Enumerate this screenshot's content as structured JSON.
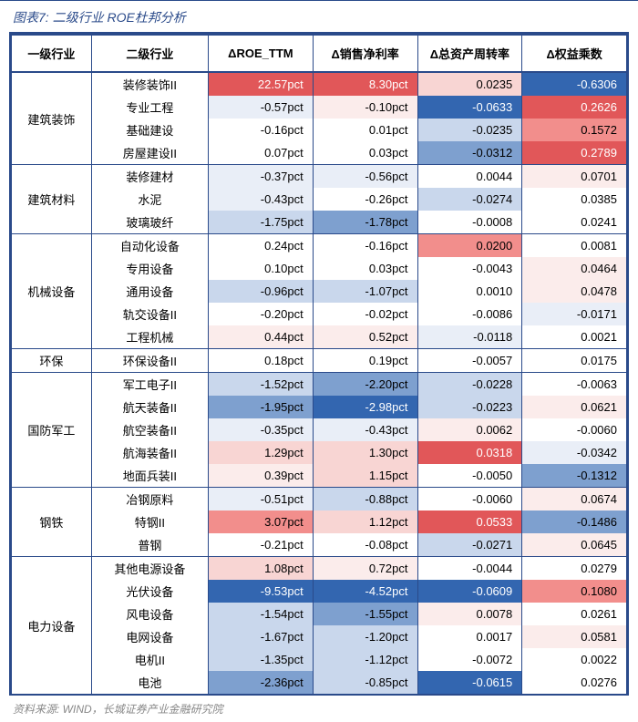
{
  "caption": "图表7: 二级行业 ROE杜邦分析",
  "source": "资料来源: WIND，长城证券产业金融研究院",
  "headers": [
    "一级行业",
    "二级行业",
    "ΔROE_TTM",
    "Δ销售净利率",
    "Δ总资产周转率",
    "Δ权益乘数"
  ],
  "colors": {
    "border": "#2a4a8a",
    "heatmap_red_strong": "#e15759",
    "heatmap_red_mid": "#f28e8c",
    "heatmap_red_light": "#f8d5d3",
    "heatmap_red_vlight": "#fbeceb",
    "heatmap_blue_strong": "#3366b0",
    "heatmap_blue_mid": "#7ea0cf",
    "heatmap_blue_light": "#c9d7ec",
    "heatmap_blue_vlight": "#e9eef7",
    "white": "#ffffff"
  },
  "groups": [
    {
      "label": "建筑装饰",
      "rows": [
        {
          "name": "装修装饰II",
          "v": [
            "22.57pct",
            "8.30pct",
            "0.0235",
            "-0.6306"
          ],
          "bg": [
            "#e15759",
            "#e15759",
            "#f8d5d3",
            "#3366b0"
          ]
        },
        {
          "name": "专业工程",
          "v": [
            "-0.57pct",
            "-0.10pct",
            "-0.0633",
            "0.2626"
          ],
          "bg": [
            "#e9eef7",
            "#fbeceb",
            "#3366b0",
            "#e15759"
          ]
        },
        {
          "name": "基础建设",
          "v": [
            "-0.16pct",
            "0.01pct",
            "-0.0235",
            "0.1572"
          ],
          "bg": [
            "#ffffff",
            "#ffffff",
            "#c9d7ec",
            "#f28e8c"
          ]
        },
        {
          "name": "房屋建设II",
          "v": [
            "0.07pct",
            "0.03pct",
            "-0.0312",
            "0.2789"
          ],
          "bg": [
            "#ffffff",
            "#ffffff",
            "#7ea0cf",
            "#e15759"
          ]
        }
      ]
    },
    {
      "label": "建筑材料",
      "rows": [
        {
          "name": "装修建材",
          "v": [
            "-0.37pct",
            "-0.56pct",
            "0.0044",
            "0.0701"
          ],
          "bg": [
            "#e9eef7",
            "#e9eef7",
            "#ffffff",
            "#fbeceb"
          ]
        },
        {
          "name": "水泥",
          "v": [
            "-0.43pct",
            "-0.26pct",
            "-0.0274",
            "0.0385"
          ],
          "bg": [
            "#e9eef7",
            "#ffffff",
            "#c9d7ec",
            "#ffffff"
          ]
        },
        {
          "name": "玻璃玻纤",
          "v": [
            "-1.75pct",
            "-1.78pct",
            "-0.0008",
            "0.0241"
          ],
          "bg": [
            "#c9d7ec",
            "#7ea0cf",
            "#ffffff",
            "#ffffff"
          ]
        }
      ]
    },
    {
      "label": "机械设备",
      "rows": [
        {
          "name": "自动化设备",
          "v": [
            "0.24pct",
            "-0.16pct",
            "0.0200",
            "0.0081"
          ],
          "bg": [
            "#ffffff",
            "#ffffff",
            "#f28e8c",
            "#ffffff"
          ]
        },
        {
          "name": "专用设备",
          "v": [
            "0.10pct",
            "0.03pct",
            "-0.0043",
            "0.0464"
          ],
          "bg": [
            "#ffffff",
            "#ffffff",
            "#ffffff",
            "#fbeceb"
          ]
        },
        {
          "name": "通用设备",
          "v": [
            "-0.96pct",
            "-1.07pct",
            "0.0010",
            "0.0478"
          ],
          "bg": [
            "#c9d7ec",
            "#c9d7ec",
            "#ffffff",
            "#fbeceb"
          ]
        },
        {
          "name": "轨交设备II",
          "v": [
            "-0.20pct",
            "-0.02pct",
            "-0.0086",
            "-0.0171"
          ],
          "bg": [
            "#ffffff",
            "#ffffff",
            "#ffffff",
            "#e9eef7"
          ]
        },
        {
          "name": "工程机械",
          "v": [
            "0.44pct",
            "0.52pct",
            "-0.0118",
            "0.0021"
          ],
          "bg": [
            "#fbeceb",
            "#fbeceb",
            "#e9eef7",
            "#ffffff"
          ]
        }
      ]
    },
    {
      "label": "环保",
      "rows": [
        {
          "name": "环保设备II",
          "v": [
            "0.18pct",
            "0.19pct",
            "-0.0057",
            "0.0175"
          ],
          "bg": [
            "#ffffff",
            "#ffffff",
            "#ffffff",
            "#ffffff"
          ]
        }
      ]
    },
    {
      "label": "国防军工",
      "rows": [
        {
          "name": "军工电子II",
          "v": [
            "-1.52pct",
            "-2.20pct",
            "-0.0228",
            "-0.0063"
          ],
          "bg": [
            "#c9d7ec",
            "#7ea0cf",
            "#c9d7ec",
            "#ffffff"
          ]
        },
        {
          "name": "航天装备II",
          "v": [
            "-1.95pct",
            "-2.98pct",
            "-0.0223",
            "0.0621"
          ],
          "bg": [
            "#7ea0cf",
            "#3366b0",
            "#c9d7ec",
            "#fbeceb"
          ]
        },
        {
          "name": "航空装备II",
          "v": [
            "-0.35pct",
            "-0.43pct",
            "0.0062",
            "-0.0060"
          ],
          "bg": [
            "#e9eef7",
            "#e9eef7",
            "#fbeceb",
            "#ffffff"
          ]
        },
        {
          "name": "航海装备II",
          "v": [
            "1.29pct",
            "1.30pct",
            "0.0318",
            "-0.0342"
          ],
          "bg": [
            "#f8d5d3",
            "#f8d5d3",
            "#e15759",
            "#e9eef7"
          ]
        },
        {
          "name": "地面兵装II",
          "v": [
            "0.39pct",
            "1.15pct",
            "-0.0050",
            "-0.1312"
          ],
          "bg": [
            "#fbeceb",
            "#f8d5d3",
            "#ffffff",
            "#7ea0cf"
          ]
        }
      ]
    },
    {
      "label": "钢铁",
      "rows": [
        {
          "name": "冶钢原料",
          "v": [
            "-0.51pct",
            "-0.88pct",
            "-0.0060",
            "0.0674"
          ],
          "bg": [
            "#e9eef7",
            "#c9d7ec",
            "#ffffff",
            "#fbeceb"
          ]
        },
        {
          "name": "特钢II",
          "v": [
            "3.07pct",
            "1.12pct",
            "0.0533",
            "-0.1486"
          ],
          "bg": [
            "#f28e8c",
            "#f8d5d3",
            "#e15759",
            "#7ea0cf"
          ]
        },
        {
          "name": "普钢",
          "v": [
            "-0.21pct",
            "-0.08pct",
            "-0.0271",
            "0.0645"
          ],
          "bg": [
            "#ffffff",
            "#ffffff",
            "#c9d7ec",
            "#fbeceb"
          ]
        }
      ]
    },
    {
      "label": "电力设备",
      "rows": [
        {
          "name": "其他电源设备",
          "v": [
            "1.08pct",
            "0.72pct",
            "-0.0044",
            "0.0279"
          ],
          "bg": [
            "#f8d5d3",
            "#fbeceb",
            "#ffffff",
            "#ffffff"
          ]
        },
        {
          "name": "光伏设备",
          "v": [
            "-9.53pct",
            "-4.52pct",
            "-0.0609",
            "0.1080"
          ],
          "bg": [
            "#3366b0",
            "#3366b0",
            "#3366b0",
            "#f28e8c"
          ]
        },
        {
          "name": "风电设备",
          "v": [
            "-1.54pct",
            "-1.55pct",
            "0.0078",
            "0.0261"
          ],
          "bg": [
            "#c9d7ec",
            "#7ea0cf",
            "#fbeceb",
            "#ffffff"
          ]
        },
        {
          "name": "电网设备",
          "v": [
            "-1.67pct",
            "-1.20pct",
            "0.0017",
            "0.0581"
          ],
          "bg": [
            "#c9d7ec",
            "#c9d7ec",
            "#ffffff",
            "#fbeceb"
          ]
        },
        {
          "name": "电机II",
          "v": [
            "-1.35pct",
            "-1.12pct",
            "-0.0072",
            "0.0022"
          ],
          "bg": [
            "#c9d7ec",
            "#c9d7ec",
            "#ffffff",
            "#ffffff"
          ]
        },
        {
          "name": "电池",
          "v": [
            "-2.36pct",
            "-0.85pct",
            "-0.0615",
            "0.0276"
          ],
          "bg": [
            "#7ea0cf",
            "#c9d7ec",
            "#3366b0",
            "#ffffff"
          ]
        }
      ]
    }
  ]
}
